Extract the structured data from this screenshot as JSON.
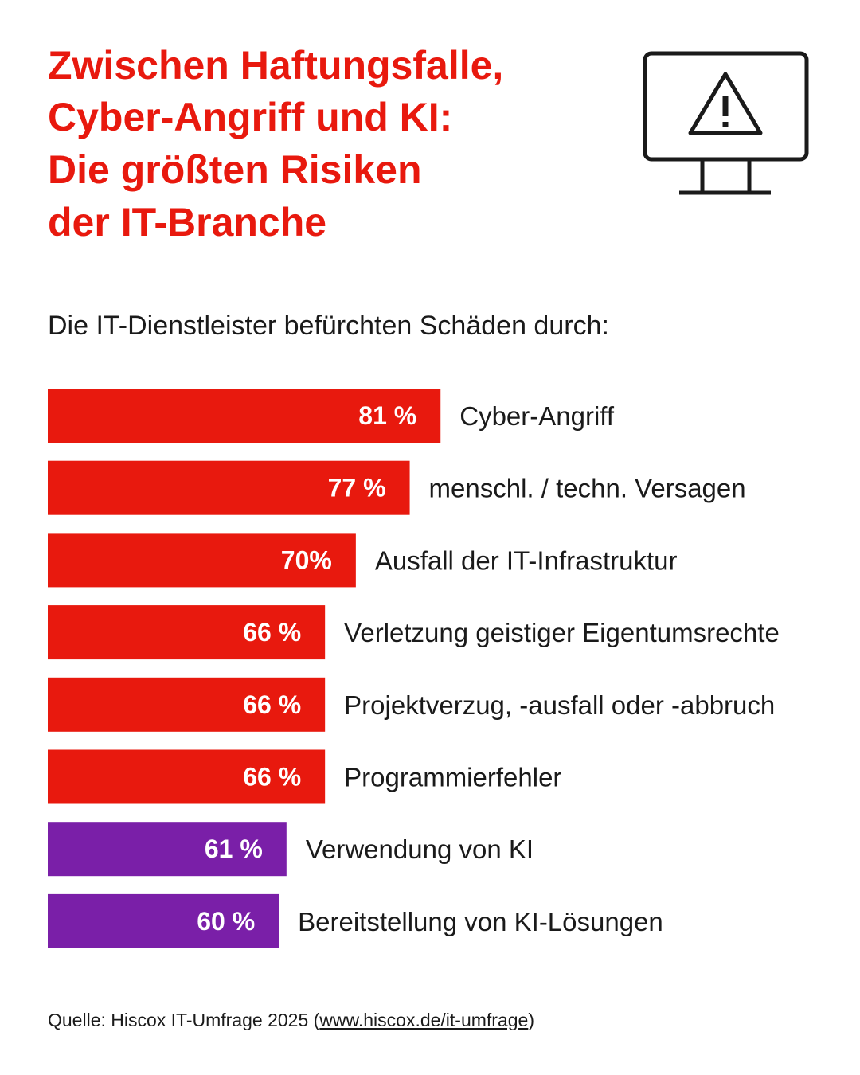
{
  "chart_data": {
    "type": "bar",
    "title": [
      "Zwischen Haftungsfalle,",
      "Cyber-Angriff und KI:",
      "Die größten Risiken",
      "der IT-Branche"
    ],
    "subtitle": "Die IT-Dienstleister befürchten Schäden durch:",
    "categories": [
      "Cyber-Angriff",
      "menschl. / techn. Versagen",
      "Ausfall der IT-Infrastruktur",
      "Verletzung geistiger Eigentumsrechte",
      "Projektverzug, -ausfall oder -abbruch",
      "Programmierfehler",
      "Verwendung von KI",
      "Bereitstellung von KI-Lösungen"
    ],
    "values": [
      81,
      77,
      70,
      66,
      66,
      66,
      61,
      60
    ],
    "value_labels": [
      "81 %",
      "77 %",
      "70%",
      "66 %",
      "66 %",
      "66 %",
      "61 %",
      "60 %"
    ],
    "colors": [
      "#e8190e",
      "#e8190e",
      "#e8190e",
      "#e8190e",
      "#e8190e",
      "#e8190e",
      "#7a1fa8",
      "#7a1fa8"
    ],
    "xlim": [
      30,
      100
    ],
    "source": {
      "prefix": "Quelle: Hiscox IT-Umfrage 2025 (",
      "link": "www.hiscox.de/it-umfrage",
      "suffix": ")"
    }
  }
}
